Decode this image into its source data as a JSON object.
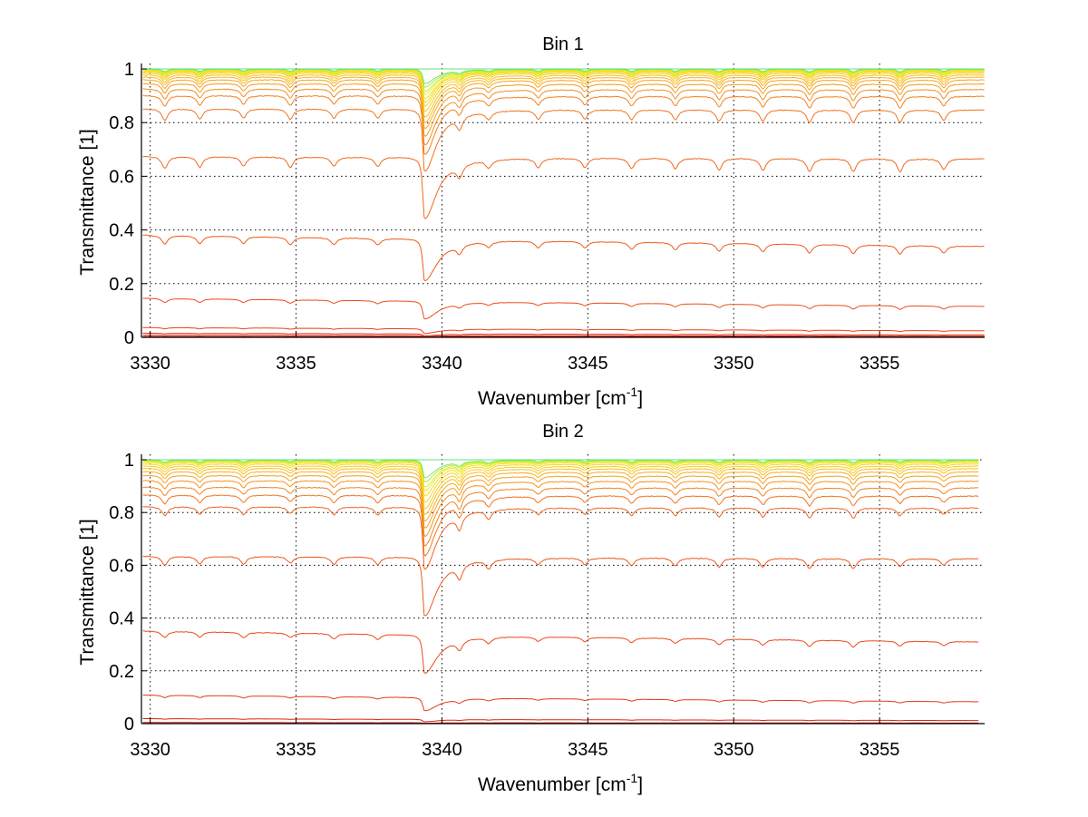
{
  "chart_data": [
    {
      "type": "line",
      "title": "Bin 1",
      "xlabel": "Wavenumber [cm^-1]",
      "xlabel_parts": [
        "Wavenumber [cm",
        "-1",
        "]"
      ],
      "ylabel": "Transmittance [1]",
      "xlim": [
        3329.7,
        3358.6
      ],
      "ylim": [
        0,
        1.02
      ],
      "xticks": [
        3330,
        3335,
        3340,
        3345,
        3350,
        3355
      ],
      "xtick_labels": [
        "3330",
        "3335",
        "3340",
        "3345",
        "3350",
        "3355"
      ],
      "yticks": [
        0,
        0.2,
        0.4,
        0.6,
        0.8,
        1
      ],
      "ytick_labels": [
        "0",
        "0.2",
        "0.4",
        "0.6",
        "0.8",
        "1"
      ],
      "grid": true,
      "x_end": 3358.6,
      "series_baseline_transmittance": [
        0.0003,
        0.002,
        0.006,
        0.012,
        0.03,
        0.13,
        0.36,
        0.67,
        0.85,
        0.9,
        0.925,
        0.945,
        0.96,
        0.97,
        0.978,
        0.985,
        0.99,
        0.993,
        0.995,
        0.997,
        0.998,
        0.999,
        0.9995,
        1.0
      ],
      "absorption_lines": {
        "centers": [
          3330.5,
          3331.7,
          3333.2,
          3334.8,
          3336.3,
          3337.8,
          3339.4,
          3340.6,
          3341.6,
          3343.3,
          3344.9,
          3346.5,
          3348.0,
          3349.5,
          3351.0,
          3352.6,
          3354.1,
          3355.7,
          3357.2
        ],
        "strengths": [
          0.09,
          0.08,
          0.07,
          0.08,
          0.07,
          0.07,
          0.55,
          0.1,
          0.06,
          0.07,
          0.07,
          0.08,
          0.08,
          0.09,
          0.09,
          0.1,
          0.1,
          0.1,
          0.08
        ]
      }
    },
    {
      "type": "line",
      "title": "Bin 2",
      "xlabel": "Wavenumber [cm^-1]",
      "xlabel_parts": [
        "Wavenumber [cm",
        "-1",
        "]"
      ],
      "ylabel": "Transmittance [1]",
      "xlim": [
        3329.7,
        3358.6
      ],
      "ylim": [
        0,
        1.02
      ],
      "xticks": [
        3330,
        3335,
        3340,
        3345,
        3350,
        3355
      ],
      "xtick_labels": [
        "3330",
        "3335",
        "3340",
        "3345",
        "3350",
        "3355"
      ],
      "yticks": [
        0,
        0.2,
        0.4,
        0.6,
        0.8,
        1
      ],
      "ytick_labels": [
        "0",
        "0.2",
        "0.4",
        "0.6",
        "0.8",
        "1"
      ],
      "grid": true,
      "x_end": 3358.4,
      "series_baseline_transmittance": [
        0.0003,
        0.003,
        0.015,
        0.095,
        0.33,
        0.63,
        0.82,
        0.865,
        0.895,
        0.92,
        0.94,
        0.955,
        0.967,
        0.976,
        0.984,
        0.99,
        0.994,
        0.996,
        0.998,
        0.999,
        1.0
      ],
      "absorption_lines": {
        "centers": [
          3330.5,
          3331.7,
          3333.2,
          3334.8,
          3336.3,
          3337.8,
          3339.4,
          3340.6,
          3341.6,
          3343.3,
          3344.9,
          3346.5,
          3348.0,
          3349.5,
          3351.0,
          3352.6,
          3354.1,
          3355.7,
          3357.2
        ],
        "strengths": [
          0.07,
          0.06,
          0.06,
          0.05,
          0.06,
          0.06,
          0.55,
          0.12,
          0.07,
          0.05,
          0.05,
          0.06,
          0.06,
          0.07,
          0.07,
          0.08,
          0.08,
          0.06,
          0.05
        ]
      }
    }
  ],
  "colormap": [
    "#c40000",
    "#e8401a",
    "#f07020",
    "#f5a020",
    "#f8d020",
    "#e8f020",
    "#60e080"
  ]
}
